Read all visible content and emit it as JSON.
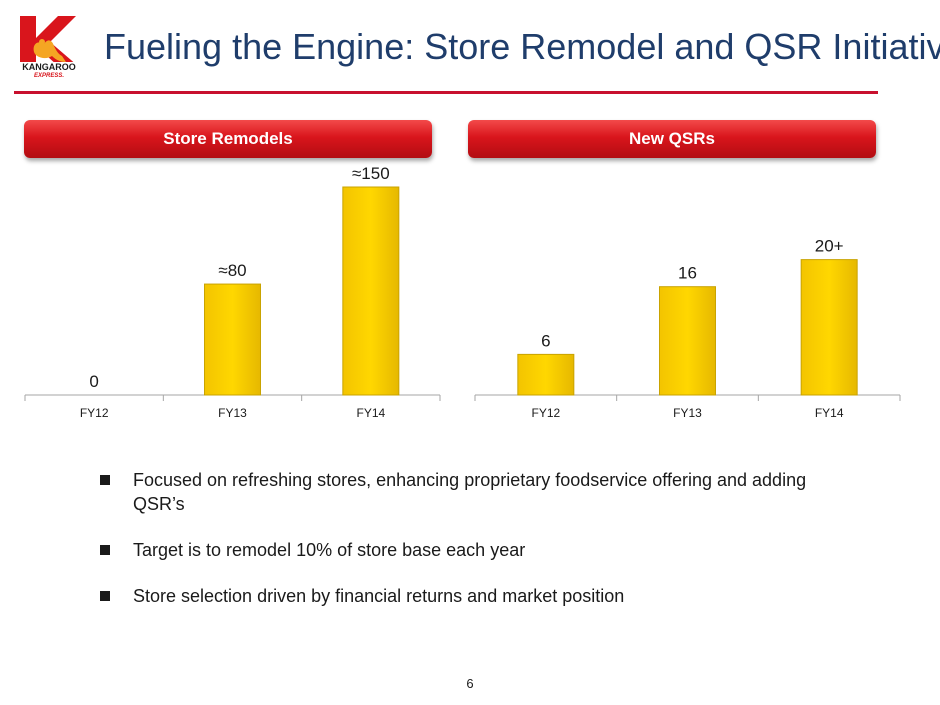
{
  "title": "Fueling the Engine:  Store Remodel and QSR Initiatives",
  "logo": {
    "lower_text": "KANGAROO",
    "sub_text": "EXPRESS."
  },
  "colors": {
    "title": "#1f3d6b",
    "accent": "#c8102e",
    "bar": "#ffd700",
    "bar_edge": "#c9a300"
  },
  "panels": [
    {
      "header": "Store Remodels"
    },
    {
      "header": "New QSRs"
    }
  ],
  "chart_data": [
    {
      "type": "bar",
      "categories": [
        "FY12",
        "FY13",
        "FY14"
      ],
      "values": [
        0,
        80,
        150
      ],
      "data_labels": [
        "0",
        "≈80",
        "≈150"
      ],
      "ylim": [
        0,
        150
      ]
    },
    {
      "type": "bar",
      "categories": [
        "FY12",
        "FY13",
        "FY14"
      ],
      "values": [
        6,
        16,
        20
      ],
      "data_labels": [
        "6",
        "16",
        "20+"
      ],
      "ylim": [
        0,
        26
      ]
    }
  ],
  "bullets": [
    {
      "text": "Focused on refreshing stores, enhancing proprietary foodservice offering and adding QSR’s"
    },
    {
      "text": "Target is to remodel 10% of store base each year"
    },
    {
      "text": "Store selection driven by financial returns and market position"
    }
  ],
  "page_number": "6"
}
